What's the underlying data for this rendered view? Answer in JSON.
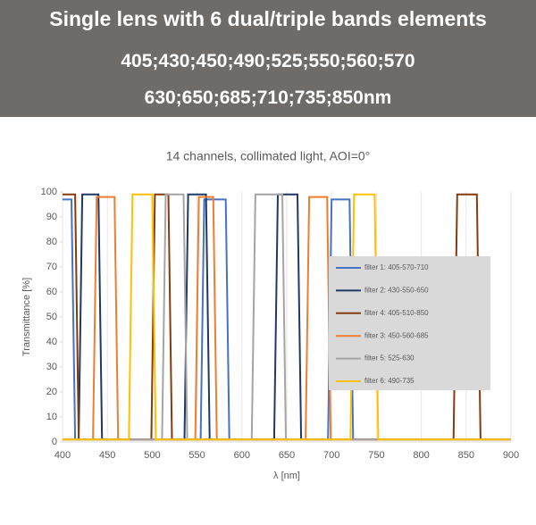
{
  "header": {
    "title": "Single lens with 6 dual/triple bands elements",
    "line1": "405;430;450;490;525;550;560;570",
    "line2": "630;650;685;710;735;850nm"
  },
  "chart_data": {
    "type": "line",
    "title": "14 channels, collimated light, AOI=0°",
    "x_label": "λ [nm]",
    "y_label": "Transmittance [%]",
    "xlim": [
      400,
      900
    ],
    "xticks": [
      400,
      450,
      500,
      550,
      600,
      650,
      700,
      750,
      800,
      850,
      900
    ],
    "ylim": [
      0,
      100
    ],
    "yticks": [
      0,
      10,
      20,
      30,
      40,
      50,
      60,
      70,
      80,
      90,
      100
    ],
    "grid": "x",
    "series": [
      {
        "name": "filter 1: 405-570-710",
        "color": "#4472c4",
        "x": [
          400,
          410,
          414,
          554,
          558,
          582,
          586,
          696,
          700,
          720,
          724,
          900
        ],
        "values": [
          97,
          97,
          1,
          1,
          97,
          97,
          1,
          1,
          97,
          97,
          1,
          1
        ]
      },
      {
        "name": "filter 2: 430-550-650",
        "color": "#1f3864",
        "x": [
          400,
          418,
          422,
          440,
          444,
          536,
          540,
          560,
          564,
          636,
          640,
          662,
          666,
          900
        ],
        "values": [
          1,
          1,
          99,
          99,
          1,
          1,
          99,
          99,
          1,
          1,
          99,
          99,
          1,
          1
        ]
      },
      {
        "name": "filter 4: 405-510-850",
        "color": "#843c0c",
        "x": [
          400,
          414,
          418,
          499,
          503,
          518,
          522,
          836,
          840,
          862,
          866,
          900
        ],
        "values": [
          99,
          99,
          1,
          1,
          99,
          99,
          1,
          1,
          99,
          99,
          1,
          1
        ]
      },
      {
        "name": "filter 3: 450-560-685",
        "color": "#ed7d31",
        "x": [
          400,
          434,
          438,
          458,
          462,
          548,
          552,
          568,
          572,
          671,
          675,
          695,
          699,
          900
        ],
        "values": [
          1,
          1,
          98,
          98,
          1,
          1,
          98,
          98,
          1,
          1,
          98,
          98,
          1,
          1
        ]
      },
      {
        "name": "filter 5: 525-630",
        "color": "#a5a5a5",
        "x": [
          400,
          511,
          515,
          535,
          539,
          611,
          615,
          645,
          649,
          900
        ],
        "values": [
          1,
          1,
          99,
          99,
          1,
          1,
          99,
          99,
          1,
          1
        ]
      },
      {
        "name": "filter 6: 490-735",
        "color": "#ffc000",
        "x": [
          400,
          474,
          478,
          500,
          504,
          721,
          725,
          748,
          752,
          900
        ],
        "values": [
          1,
          1,
          99,
          99,
          1,
          1,
          99,
          99,
          1,
          1
        ]
      }
    ]
  }
}
